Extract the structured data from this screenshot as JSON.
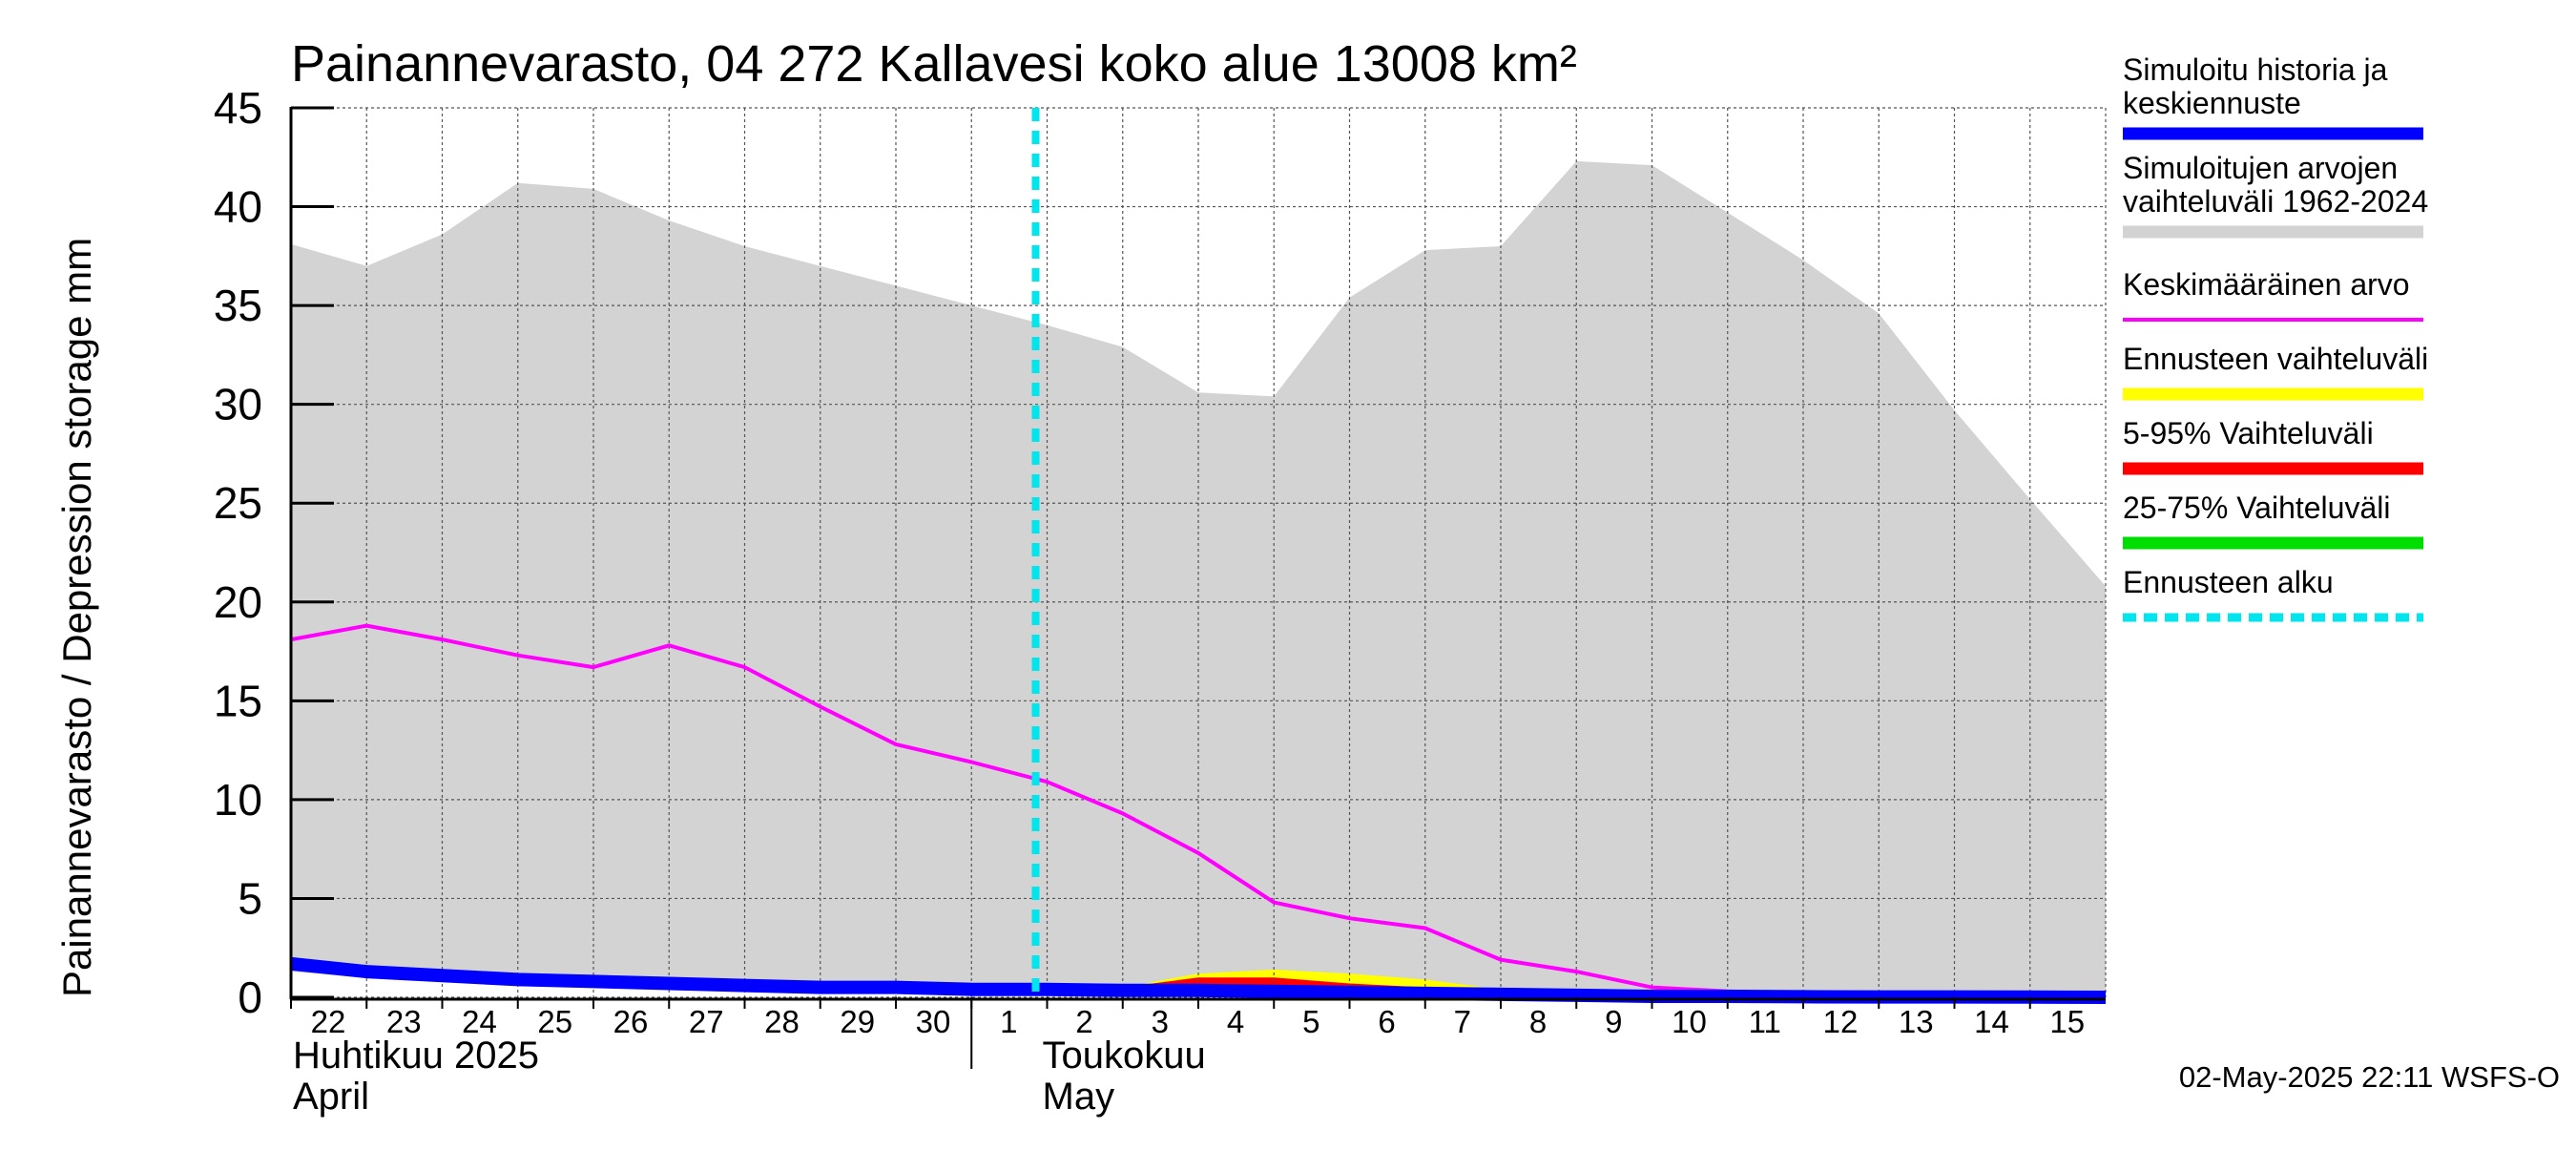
{
  "chart_data": {
    "type": "area",
    "title": "Painannevarasto, 04 272 Kallavesi koko alue 13008 km²",
    "ylabel": "Painannevarasto / Depression storage    mm",
    "ylim": [
      0,
      45
    ],
    "yticks": [
      0,
      5,
      10,
      15,
      20,
      25,
      30,
      35,
      40,
      45
    ],
    "grid": true,
    "legend_position": "right",
    "x_day_labels": [
      "22",
      "23",
      "24",
      "25",
      "26",
      "27",
      "28",
      "29",
      "30",
      "1",
      "2",
      "3",
      "4",
      "5",
      "6",
      "7",
      "8",
      "9",
      "10",
      "11",
      "12",
      "13",
      "14",
      "15"
    ],
    "month_labels": [
      {
        "line1": "Huhtikuu  2025",
        "line2": "April"
      },
      {
        "line1": "Toukokuu",
        "line2": "May"
      }
    ],
    "x_dates": [
      "2025-04-22",
      "2025-04-23",
      "2025-04-24",
      "2025-04-25",
      "2025-04-26",
      "2025-04-27",
      "2025-04-28",
      "2025-04-29",
      "2025-04-30",
      "2025-05-01",
      "2025-05-02",
      "2025-05-03",
      "2025-05-04",
      "2025-05-05",
      "2025-05-06",
      "2025-05-07",
      "2025-05-08",
      "2025-05-09",
      "2025-05-10",
      "2025-05-11",
      "2025-05-12",
      "2025-05-13",
      "2025-05-14",
      "2025-05-15",
      "2025-05-16"
    ],
    "forecast_start": "2025-05-02",
    "series": [
      {
        "name": "Simuloitujen arvojen vaihteluväli 1962-2024",
        "kind": "band",
        "color": "#d3d3d3",
        "upper": [
          38.1,
          37.0,
          38.6,
          41.2,
          40.9,
          39.3,
          38.0,
          37.0,
          36.0,
          35.0,
          34.0,
          32.9,
          30.6,
          30.4,
          35.4,
          37.8,
          38.0,
          42.3,
          42.1,
          39.7,
          37.3,
          34.6,
          29.7,
          25.2,
          20.8
        ],
        "lower": [
          1.3,
          1.0,
          0.9,
          0.8,
          0.7,
          0.6,
          0.5,
          0.4,
          0.3,
          0.3,
          0.3,
          0.2,
          0.2,
          0.1,
          0.1,
          0.1,
          0.0,
          0.0,
          0.0,
          0.0,
          0.0,
          0.0,
          0.0,
          0.0,
          0.0
        ]
      },
      {
        "name": "Ennusteen vaihteluväli",
        "kind": "band",
        "color": "#ffff00",
        "upper": [
          null,
          null,
          null,
          null,
          null,
          null,
          null,
          null,
          null,
          null,
          0.5,
          0.5,
          1.2,
          1.4,
          1.2,
          0.9,
          0.4,
          0.2,
          0.1,
          0.1,
          0.1,
          0.0,
          0.0,
          0.0,
          0.0
        ],
        "lower": [
          null,
          null,
          null,
          null,
          null,
          null,
          null,
          null,
          null,
          null,
          0.5,
          0.4,
          0.3,
          0.3,
          0.2,
          0.1,
          0.1,
          0.0,
          0.0,
          0.0,
          0.0,
          0.0,
          0.0,
          0.0,
          0.0
        ]
      },
      {
        "name": "5-95% Vaihteluväli",
        "kind": "band",
        "color": "#ff0000",
        "upper": [
          null,
          null,
          null,
          null,
          null,
          null,
          null,
          null,
          null,
          null,
          0.5,
          0.5,
          1.0,
          1.0,
          0.7,
          0.5,
          0.3,
          0.2,
          0.1,
          0.1,
          0.1,
          0.0,
          0.0,
          0.0,
          0.0
        ],
        "lower": [
          null,
          null,
          null,
          null,
          null,
          null,
          null,
          null,
          null,
          null,
          0.5,
          0.4,
          0.3,
          0.3,
          0.2,
          0.1,
          0.1,
          0.0,
          0.0,
          0.0,
          0.0,
          0.0,
          0.0,
          0.0,
          0.0
        ]
      },
      {
        "name": "25-75% Vaihteluväli",
        "kind": "band",
        "color": "#00dd00",
        "upper": [
          null,
          null,
          null,
          null,
          null,
          null,
          null,
          null,
          null,
          null,
          0.5,
          0.5,
          0.6,
          0.6,
          0.4,
          0.3,
          0.2,
          0.1,
          0.1,
          0.0,
          0.0,
          0.0,
          0.0,
          0.0,
          0.0
        ],
        "lower": [
          null,
          null,
          null,
          null,
          null,
          null,
          null,
          null,
          null,
          null,
          0.5,
          0.5,
          0.5,
          0.5,
          0.3,
          0.2,
          0.1,
          0.1,
          0.0,
          0.0,
          0.0,
          0.0,
          0.0,
          0.0,
          0.0
        ]
      },
      {
        "name": "Keskimääräinen arvo",
        "kind": "line",
        "color": "#ff00ff",
        "values": [
          18.1,
          18.8,
          18.1,
          17.3,
          16.7,
          17.8,
          16.7,
          14.7,
          12.8,
          11.9,
          10.9,
          9.3,
          7.3,
          4.8,
          4.0,
          3.5,
          1.9,
          1.3,
          0.5,
          0.3,
          0.2,
          0.1,
          0.1,
          0.1,
          0.0
        ]
      },
      {
        "name": "Simuloitu historia ja keskiennuste",
        "kind": "line",
        "color": "#0000ff",
        "values": [
          1.7,
          1.3,
          1.1,
          0.9,
          0.8,
          0.7,
          0.6,
          0.5,
          0.5,
          0.4,
          0.4,
          0.35,
          0.35,
          0.3,
          0.25,
          0.2,
          0.15,
          0.1,
          0.05,
          0.05,
          0.03,
          0.02,
          0.02,
          0.01,
          0.0
        ]
      }
    ],
    "legend": [
      {
        "line1": "Simuloitu historia ja",
        "line2": "keskiennuste",
        "color": "#0000ff",
        "style": "thick"
      },
      {
        "line1": "Simuloitujen arvojen",
        "line2": "vaihteluväli 1962-2024",
        "color": "#d3d3d3",
        "style": "thick"
      },
      {
        "line1": "Keskimääräinen arvo",
        "line2": "",
        "color": "#ff00ff",
        "style": "thin"
      },
      {
        "line1": "Ennusteen vaihteluväli",
        "line2": "",
        "color": "#ffff00",
        "style": "thick"
      },
      {
        "line1": "5-95% Vaihteluväli",
        "line2": "",
        "color": "#ff0000",
        "style": "thick"
      },
      {
        "line1": "25-75% Vaihteluväli",
        "line2": "",
        "color": "#00dd00",
        "style": "thick"
      },
      {
        "line1": "Ennusteen alku",
        "line2": "",
        "color": "#00e5ee",
        "style": "dashed"
      }
    ],
    "footer": "02-May-2025 22:11 WSFS-O"
  }
}
